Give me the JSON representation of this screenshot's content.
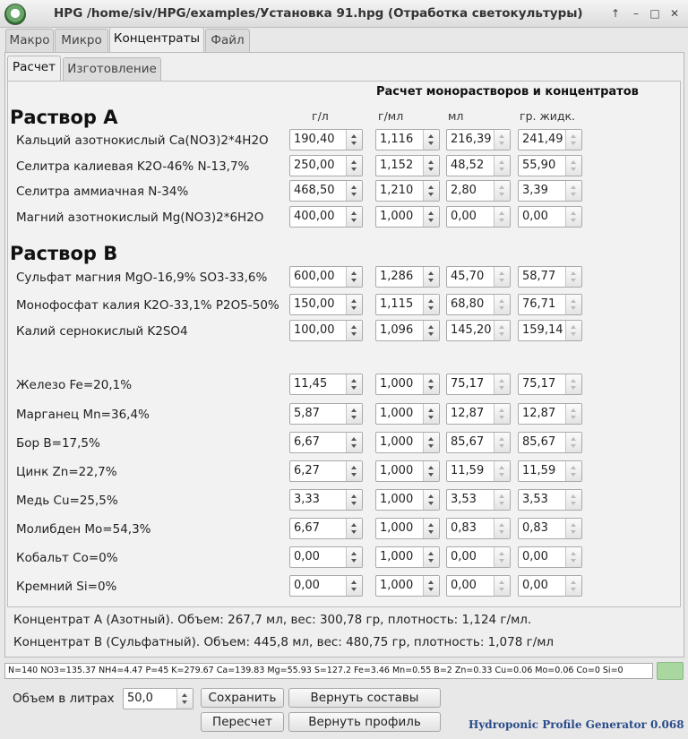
{
  "window": {
    "title": "HPG /home/siv/HPG/examples/Установка 91.hpg (Отработка светокультуры)"
  },
  "outer_tabs": [
    "Макро",
    "Микро",
    "Концентраты",
    "Файл"
  ],
  "outer_active": "Концентраты",
  "inner_tabs": [
    "Расчет",
    "Изготовление"
  ],
  "inner_active": "Расчет",
  "header_title": "Расчет монорастворов и концентратов",
  "columns": [
    "г/л",
    "г/мл",
    "мл",
    "гр. жидк."
  ],
  "section_a": "Раствор А",
  "section_b": "Раствор В",
  "rows_a": [
    {
      "label": "Кальций азотнокислый Ca(NO3)2*4H2O",
      "g_l": "190,40",
      "g_ml": "1,116",
      "ml": "216,39",
      "gr": "241,49"
    },
    {
      "label": "Селитра калиевая K2O-46% N-13,7%",
      "g_l": "250,00",
      "g_ml": "1,152",
      "ml": "48,52",
      "gr": "55,90"
    },
    {
      "label": "Селитра аммиачная N-34%",
      "g_l": "468,50",
      "g_ml": "1,210",
      "ml": "2,80",
      "gr": "3,39"
    },
    {
      "label": "Магний азотнокислый Mg(NO3)2*6H2O",
      "g_l": "400,00",
      "g_ml": "1,000",
      "ml": "0,00",
      "gr": "0,00"
    }
  ],
  "rows_b": [
    {
      "label": "Сульфат магния MgO-16,9% SO3-33,6%",
      "g_l": "600,00",
      "g_ml": "1,286",
      "ml": "45,70",
      "gr": "58,77"
    },
    {
      "label": "Монофосфат калия K2O-33,1% P2O5-50%",
      "g_l": "150,00",
      "g_ml": "1,115",
      "ml": "68,80",
      "gr": "76,71"
    },
    {
      "label": "Калий сернокислый K2SO4",
      "g_l": "100,00",
      "g_ml": "1,096",
      "ml": "145,20",
      "gr": "159,14"
    }
  ],
  "rows_micro": [
    {
      "label": "Железо Fe=20,1%",
      "g_l": "11,45",
      "g_ml": "1,000",
      "ml": "75,17",
      "gr": "75,17"
    },
    {
      "label": "Марганец Mn=36,4%",
      "g_l": "5,87",
      "g_ml": "1,000",
      "ml": "12,87",
      "gr": "12,87"
    },
    {
      "label": "Бор B=17,5%",
      "g_l": "6,67",
      "g_ml": "1,000",
      "ml": "85,67",
      "gr": "85,67"
    },
    {
      "label": "Цинк Zn=22,7%",
      "g_l": "6,27",
      "g_ml": "1,000",
      "ml": "11,59",
      "gr": "11,59"
    },
    {
      "label": "Медь Cu=25,5%",
      "g_l": "3,33",
      "g_ml": "1,000",
      "ml": "3,53",
      "gr": "3,53"
    },
    {
      "label": "Молибден Mo=54,3%",
      "g_l": "6,67",
      "g_ml": "1,000",
      "ml": "0,83",
      "gr": "0,83"
    },
    {
      "label": "Кобальт Co=0%",
      "g_l": "0,00",
      "g_ml": "1,000",
      "ml": "0,00",
      "gr": "0,00"
    },
    {
      "label": "Кремний Si=0%",
      "g_l": "0,00",
      "g_ml": "1,000",
      "ml": "0,00",
      "gr": "0,00"
    }
  ],
  "summary": {
    "a": "Концентрат А (Азотный). Объем: 267,7 мл, вес: 300,78 гр, плотность: 1,124 г/мл.",
    "b": "Концентрат В (Сульфатный). Объем: 445,8 мл, вес: 480,75 гр, плотность: 1,078 г/мл"
  },
  "status_line": "N=140 NO3=135.37 NH4=4.47 P=45 K=279.67 Ca=139.83 Mg=55.93 S=127.2 Fe=3.46 Mn=0.55 B=2 Zn=0.33 Cu=0.06 Mo=0.06 Co=0 Si=0",
  "volume": {
    "label": "Объем в литрах",
    "value": "50,0"
  },
  "buttons": {
    "save": "Сохранить",
    "restore_compositions": "Вернуть составы",
    "recalc": "Пересчет",
    "restore_profile": "Вернуть профиль"
  },
  "brand": "Hydroponic Profile Generator 0.068",
  "colors": {
    "status_indicator": "#a8d8a0",
    "brand": "#2a4c8a"
  }
}
